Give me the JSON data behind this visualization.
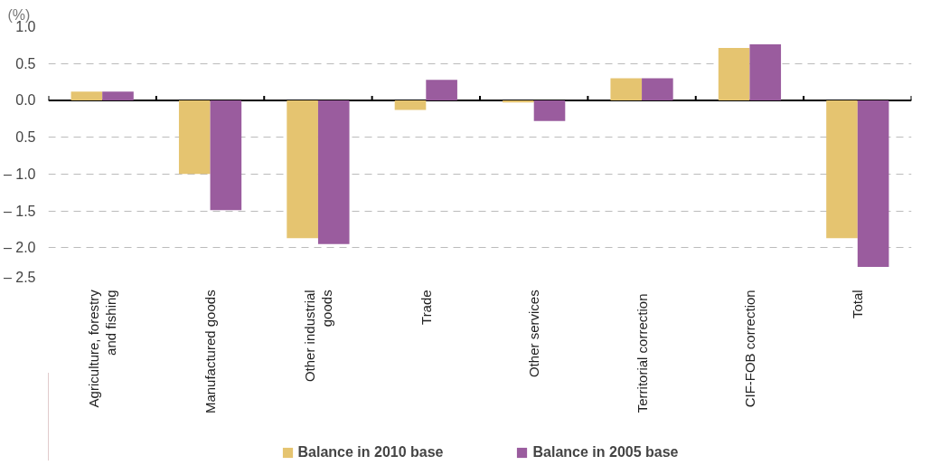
{
  "chart_data": {
    "type": "bar",
    "ylabel": "(%)",
    "categories": [
      "Agriculture, forestry\nand fishing",
      "Manufactured goods",
      "Other industrial\ngoods",
      "Trade",
      "Other services",
      "Territorial  correction",
      "CIF-FOB correction",
      "Total"
    ],
    "series": [
      {
        "name": "Balance in 2010 base",
        "color": "#e5c470",
        "values": [
          0.12,
          -1.0,
          -1.87,
          -0.13,
          -0.03,
          0.3,
          0.71,
          -1.87
        ]
      },
      {
        "name": "Balance in 2005 base",
        "color": "#9a5c9e",
        "values": [
          0.12,
          -1.49,
          -1.95,
          0.28,
          -0.28,
          0.3,
          0.76,
          -2.26
        ]
      }
    ],
    "ylim": [
      -2.5,
      1.0
    ],
    "yticks": [
      {
        "value": 1.0,
        "label": "1.0"
      },
      0.5,
      {
        "value": 0.0,
        "label": "0.0"
      },
      {
        "value": -0.5,
        "label": "0.5"
      },
      {
        "value": -1.0,
        "label": "– 1.0"
      },
      {
        "value": -1.5,
        "label": "– 1.5"
      },
      {
        "value": -2.0,
        "label": "– 2.0"
      },
      {
        "value": -2.5,
        "label": "– 2.5"
      }
    ],
    "grid": "y",
    "legend": "bottom"
  }
}
